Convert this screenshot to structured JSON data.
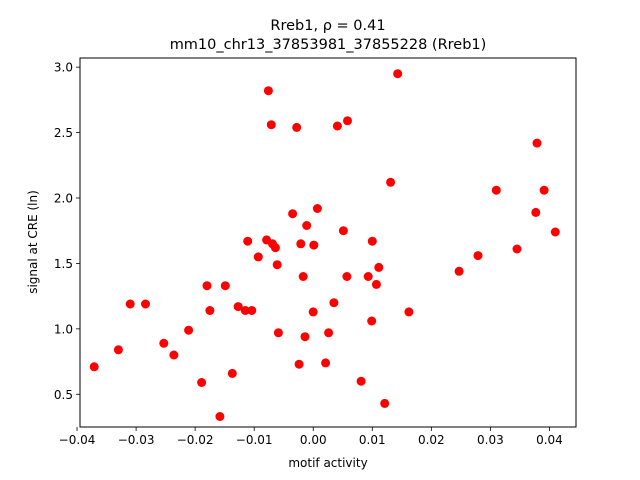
{
  "chart_data": {
    "type": "scatter",
    "title_line1": "Rreb1, ρ = 0.41",
    "title_line2": "mm10_chr13_37853981_37855228 (Rreb1)",
    "xlabel": "motif activity",
    "ylabel": "signal at CRE (ln)",
    "xlim": [
      -0.0395,
      0.0445
    ],
    "ylim": [
      0.25,
      3.07
    ],
    "grid": false,
    "marker_color": "#ff0000",
    "x_ticks": [
      {
        "value": -0.04,
        "label": "−0.04"
      },
      {
        "value": -0.03,
        "label": "−0.03"
      },
      {
        "value": -0.02,
        "label": "−0.02"
      },
      {
        "value": -0.01,
        "label": "−0.01"
      },
      {
        "value": 0.0,
        "label": "0.00"
      },
      {
        "value": 0.01,
        "label": "0.01"
      },
      {
        "value": 0.02,
        "label": "0.02"
      },
      {
        "value": 0.03,
        "label": "0.03"
      },
      {
        "value": 0.04,
        "label": "0.04"
      }
    ],
    "y_ticks": [
      {
        "value": 0.5,
        "label": "0.5"
      },
      {
        "value": 1.0,
        "label": "1.0"
      },
      {
        "value": 1.5,
        "label": "1.5"
      },
      {
        "value": 2.0,
        "label": "2.0"
      },
      {
        "value": 2.5,
        "label": "2.5"
      },
      {
        "value": 3.0,
        "label": "3.0"
      }
    ],
    "points": [
      {
        "x": -0.0371,
        "y": 0.71
      },
      {
        "x": -0.033,
        "y": 0.84
      },
      {
        "x": -0.031,
        "y": 1.19
      },
      {
        "x": -0.0284,
        "y": 1.19
      },
      {
        "x": -0.0253,
        "y": 0.89
      },
      {
        "x": -0.0236,
        "y": 0.8
      },
      {
        "x": -0.0211,
        "y": 0.99
      },
      {
        "x": -0.0189,
        "y": 0.59
      },
      {
        "x": -0.018,
        "y": 1.33
      },
      {
        "x": -0.0175,
        "y": 1.14
      },
      {
        "x": -0.0158,
        "y": 0.33
      },
      {
        "x": -0.0149,
        "y": 1.33
      },
      {
        "x": -0.0137,
        "y": 0.66
      },
      {
        "x": -0.0127,
        "y": 1.17
      },
      {
        "x": -0.0115,
        "y": 1.14
      },
      {
        "x": -0.0111,
        "y": 1.67
      },
      {
        "x": -0.0104,
        "y": 1.14
      },
      {
        "x": -0.0093,
        "y": 1.55
      },
      {
        "x": -0.0079,
        "y": 1.68
      },
      {
        "x": -0.0076,
        "y": 2.82
      },
      {
        "x": -0.0071,
        "y": 2.56
      },
      {
        "x": -0.0069,
        "y": 1.65
      },
      {
        "x": -0.0064,
        "y": 1.62
      },
      {
        "x": -0.0061,
        "y": 1.49
      },
      {
        "x": -0.0059,
        "y": 0.97
      },
      {
        "x": -0.0035,
        "y": 1.88
      },
      {
        "x": -0.0028,
        "y": 2.54
      },
      {
        "x": -0.0024,
        "y": 0.73
      },
      {
        "x": -0.0021,
        "y": 1.65
      },
      {
        "x": -0.0017,
        "y": 1.4
      },
      {
        "x": -0.0014,
        "y": 0.94
      },
      {
        "x": -0.0011,
        "y": 1.79
      },
      {
        "x": 0.0,
        "y": 1.13
      },
      {
        "x": 0.0001,
        "y": 1.64
      },
      {
        "x": 0.0007,
        "y": 1.92
      },
      {
        "x": 0.0021,
        "y": 0.74
      },
      {
        "x": 0.0026,
        "y": 0.97
      },
      {
        "x": 0.0035,
        "y": 1.2
      },
      {
        "x": 0.0041,
        "y": 2.55
      },
      {
        "x": 0.0051,
        "y": 1.75
      },
      {
        "x": 0.0057,
        "y": 1.4
      },
      {
        "x": 0.0058,
        "y": 2.59
      },
      {
        "x": 0.0081,
        "y": 0.6
      },
      {
        "x": 0.0093,
        "y": 1.4
      },
      {
        "x": 0.0099,
        "y": 1.06
      },
      {
        "x": 0.01,
        "y": 1.67
      },
      {
        "x": 0.0107,
        "y": 1.34
      },
      {
        "x": 0.0111,
        "y": 1.47
      },
      {
        "x": 0.0121,
        "y": 0.43
      },
      {
        "x": 0.0131,
        "y": 2.12
      },
      {
        "x": 0.0143,
        "y": 2.95
      },
      {
        "x": 0.0162,
        "y": 1.13
      },
      {
        "x": 0.0247,
        "y": 1.44
      },
      {
        "x": 0.0279,
        "y": 1.56
      },
      {
        "x": 0.031,
        "y": 2.06
      },
      {
        "x": 0.0345,
        "y": 1.61
      },
      {
        "x": 0.0377,
        "y": 1.89
      },
      {
        "x": 0.0379,
        "y": 2.42
      },
      {
        "x": 0.0391,
        "y": 2.06
      },
      {
        "x": 0.041,
        "y": 1.74
      }
    ]
  }
}
